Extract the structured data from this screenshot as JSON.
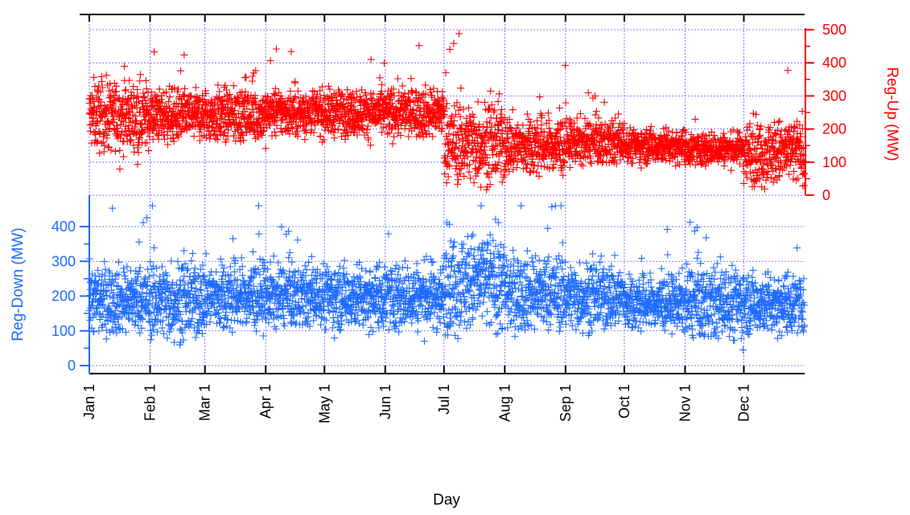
{
  "chart_data": {
    "type": "scatter",
    "xlabel": "Day",
    "x_tick_labels": [
      "Jan 1",
      "Feb 1",
      "Mar 1",
      "Apr 1",
      "May 1",
      "Jun 1",
      "Jul 1",
      "Aug 1",
      "Sep 1",
      "Oct 1",
      "Nov 1",
      "Dec 1"
    ],
    "x_tick_days": [
      0,
      31,
      59,
      90,
      120,
      151,
      181,
      212,
      243,
      273,
      304,
      334
    ],
    "x_range_days": [
      0,
      365
    ],
    "grid": true,
    "marker": "+",
    "panels": [
      {
        "name": "upper",
        "ylabel": "Reg-Up (MW)",
        "y_axis_side": "right",
        "ylim": [
          0,
          500
        ],
        "y_ticks": [
          0,
          100,
          200,
          300,
          400,
          500
        ],
        "color": "#ff0000",
        "series": [
          {
            "typical_range_by_month": [
              {
                "month": "Jan",
                "low": 120,
                "high": 400,
                "center": 240
              },
              {
                "month": "Feb",
                "low": 140,
                "high": 350,
                "center": 240
              },
              {
                "month": "Mar",
                "low": 140,
                "high": 360,
                "center": 240
              },
              {
                "month": "Apr",
                "low": 150,
                "high": 340,
                "center": 250
              },
              {
                "month": "May",
                "low": 150,
                "high": 340,
                "center": 250
              },
              {
                "month": "Jun",
                "low": 150,
                "high": 350,
                "center": 250
              },
              {
                "month": "Jul",
                "low": 30,
                "high": 360,
                "center": 160
              },
              {
                "month": "Aug",
                "low": 80,
                "high": 320,
                "center": 150
              },
              {
                "month": "Sep",
                "low": 100,
                "high": 280,
                "center": 160
              },
              {
                "month": "Oct",
                "low": 100,
                "high": 240,
                "center": 150
              },
              {
                "month": "Nov",
                "low": 90,
                "high": 220,
                "center": 140
              },
              {
                "month": "Dec",
                "low": 40,
                "high": 300,
                "center": 130
              }
            ],
            "max_approx": 510,
            "min_approx": 0
          }
        ]
      },
      {
        "name": "lower",
        "ylabel": "Reg-Down (MW)",
        "y_axis_side": "left",
        "ylim": [
          0,
          450
        ],
        "y_ticks": [
          0,
          100,
          200,
          300,
          400
        ],
        "color": "#1f6bff",
        "series": [
          {
            "typical_range_by_month": [
              {
                "month": "Jan",
                "low": 60,
                "high": 320,
                "center": 190
              },
              {
                "month": "Feb",
                "low": 40,
                "high": 340,
                "center": 190
              },
              {
                "month": "Mar",
                "low": 60,
                "high": 330,
                "center": 200
              },
              {
                "month": "Apr",
                "low": 80,
                "high": 320,
                "center": 200
              },
              {
                "month": "May",
                "low": 80,
                "high": 330,
                "center": 200
              },
              {
                "month": "Jun",
                "low": 80,
                "high": 340,
                "center": 200
              },
              {
                "month": "Jul",
                "low": 60,
                "high": 440,
                "center": 240
              },
              {
                "month": "Aug",
                "low": 70,
                "high": 360,
                "center": 210
              },
              {
                "month": "Sep",
                "low": 60,
                "high": 320,
                "center": 200
              },
              {
                "month": "Oct",
                "low": 110,
                "high": 320,
                "center": 180
              },
              {
                "month": "Nov",
                "low": 60,
                "high": 340,
                "center": 180
              },
              {
                "month": "Dec",
                "low": 100,
                "high": 330,
                "center": 180
              }
            ],
            "max_approx": 460,
            "min_approx": 0
          }
        ]
      }
    ]
  }
}
